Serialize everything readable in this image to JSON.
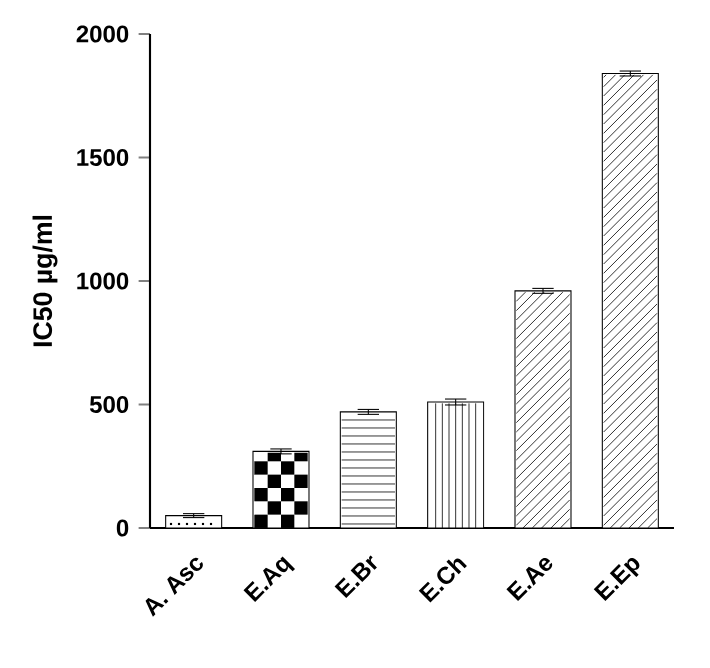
{
  "chart_data": {
    "type": "bar",
    "ylabel": "IC50 µg/ml",
    "categories": [
      "A. Asc",
      "E.Aq",
      "E.Br",
      "E.Ch",
      "E.Ae",
      "E.Ep"
    ],
    "values": [
      50,
      310,
      470,
      510,
      960,
      1840
    ],
    "errors": [
      8,
      10,
      10,
      12,
      10,
      10
    ],
    "color": "#000000",
    "ylim": [
      0,
      2000
    ],
    "yticks": [
      0,
      500,
      1000,
      1500,
      2000
    ]
  }
}
